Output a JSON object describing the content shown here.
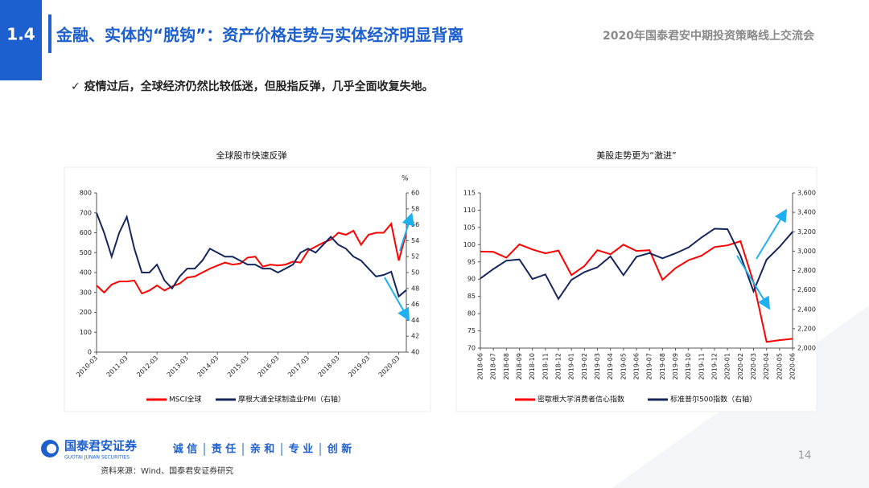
{
  "slide": {
    "section": "1.4",
    "title": "金融、实体的“脱钩”：资产价格走势与实体经济明显背离",
    "event": "2020年国泰君安中期投资策略线上交流会",
    "bullet": "✓ 疫情过后，全球经济仍然比较低迷，但股指反弹，几乎全面收复失地。",
    "company": "国泰君安证券",
    "company_en": "GUOTAI JUNAN SECURITIES",
    "values": [
      "诚 信",
      "责 任",
      "亲 和",
      "专 业",
      "创 新"
    ],
    "page": "14",
    "source": "资料来源：Wind、国泰君安证券研究"
  },
  "chart_data": [
    {
      "type": "line",
      "title": "全球股市快速反弹",
      "y2_label": "%",
      "categories": [
        "2010-03",
        null,
        null,
        null,
        "2011-03",
        null,
        null,
        null,
        "2012-03",
        null,
        null,
        null,
        "2013-03",
        null,
        null,
        null,
        "2014-03",
        null,
        null,
        null,
        "2015-03",
        null,
        null,
        null,
        "2016-03",
        null,
        null,
        null,
        "2017-03",
        null,
        null,
        null,
        "2018-03",
        null,
        null,
        null,
        "2019-03",
        null,
        null,
        null,
        "2020-03",
        null
      ],
      "series": [
        {
          "name": "MSCI全球",
          "color": "#ff0000",
          "values": [
            335,
            300,
            340,
            355,
            355,
            360,
            295,
            310,
            335,
            310,
            330,
            345,
            375,
            380,
            400,
            420,
            435,
            450,
            440,
            445,
            475,
            480,
            430,
            440,
            435,
            440,
            455,
            450,
            510,
            530,
            550,
            565,
            600,
            590,
            610,
            540,
            590,
            600,
            600,
            645,
            460,
            600
          ]
        },
        {
          "name": "摩根大通全球制造业PMI（右轴）",
          "color": "#16275e",
          "axis": "y2",
          "values": [
            57.5,
            55,
            52,
            55,
            57,
            53,
            50,
            50,
            51,
            49,
            48,
            49.5,
            50.5,
            50.5,
            51.5,
            53,
            52.5,
            52,
            52,
            51.5,
            51,
            51,
            50.5,
            50.5,
            50,
            50.5,
            51,
            52.5,
            53,
            52.5,
            53.5,
            54.5,
            53.5,
            53,
            52,
            51.5,
            50.5,
            49.5,
            49.7,
            50.1,
            47,
            47.8
          ]
        }
      ],
      "ylim": [
        0,
        800
      ],
      "yticks": [
        0,
        100,
        200,
        300,
        400,
        500,
        600,
        700,
        800
      ],
      "y2lim": [
        40,
        60
      ],
      "y2ticks": [
        40,
        42,
        44,
        46,
        48,
        50,
        52,
        54,
        56,
        58,
        60
      ]
    },
    {
      "type": "line",
      "title": "美股走势更为“激进”",
      "categories": [
        "2018-06",
        "2018-07",
        "2018-08",
        "2018-09",
        "2018-10",
        "2018-11",
        "2018-12",
        "2019-01",
        "2019-02",
        "2019-03",
        "2019-04",
        "2019-05",
        "2019-06",
        "2019-07",
        "2019-08",
        "2019-09",
        "2019-10",
        "2019-11",
        "2019-12",
        "2020-01",
        "2020-02",
        "2020-03",
        "2020-04",
        "2020-05",
        "2020-06"
      ],
      "series": [
        {
          "name": "密歇根大学消费者信心指数",
          "color": "#ff0000",
          "values": [
            98,
            97.9,
            96.2,
            100.1,
            98.6,
            97.5,
            98.3,
            91.2,
            93.8,
            98.4,
            97.2,
            100,
            98.2,
            98.4,
            89.8,
            93.2,
            95.5,
            96.8,
            99.3,
            99.8,
            101,
            89.1,
            71.8,
            72.3,
            72.7
          ]
        },
        {
          "name": "标准普尔500指数（右轴）",
          "color": "#16275e",
          "axis": "y2",
          "values": [
            2718,
            2816,
            2902,
            2914,
            2712,
            2760,
            2507,
            2704,
            2784,
            2834,
            2946,
            2752,
            2942,
            2980,
            2926,
            2977,
            3038,
            3141,
            3231,
            3226,
            2954,
            2585,
            2912,
            3044,
            3200
          ]
        }
      ],
      "ylim": [
        70,
        115
      ],
      "yticks": [
        70,
        75,
        80,
        85,
        90,
        95,
        100,
        105,
        110,
        115
      ],
      "y2lim": [
        2000,
        3600
      ],
      "y2ticks": [
        {
          "value": 2000,
          "label": "2,000"
        },
        {
          "value": 2200,
          "label": "2,200"
        },
        {
          "value": 2400,
          "label": "2,400"
        },
        {
          "value": 2600,
          "label": "2,600"
        },
        {
          "value": 2800,
          "label": "2,800"
        },
        {
          "value": 3000,
          "label": "3,000"
        },
        {
          "value": 3200,
          "label": "3,200"
        },
        {
          "value": 3400,
          "label": "3,400"
        },
        {
          "value": 3600,
          "label": "3,600"
        }
      ]
    }
  ]
}
